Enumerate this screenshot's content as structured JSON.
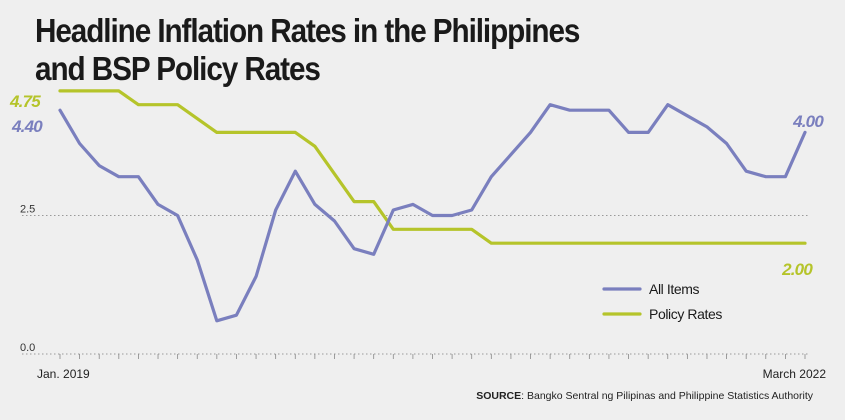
{
  "title_line1": "Headline Inflation Rates in the Philippines",
  "title_line2": "and BSP Policy Rates",
  "source_label": "SOURCE",
  "source_text": ": Bangko Sentral ng Pilipinas and Philippine Statistics Authority",
  "chart_data": {
    "type": "line",
    "ylim": [
      0,
      5
    ],
    "y_ticks": [
      {
        "value": 0,
        "label": "0.0"
      },
      {
        "value": 2.5,
        "label": "2.5"
      }
    ],
    "x_labels": {
      "first": "Jan. 2019",
      "last": "March 2022"
    },
    "legend_position": "bottom-right",
    "series": [
      {
        "name": "All Items",
        "color": "#7a7fbe",
        "values": [
          4.4,
          3.8,
          3.4,
          3.2,
          3.2,
          2.7,
          2.5,
          1.7,
          0.6,
          0.7,
          1.4,
          2.6,
          3.3,
          2.7,
          2.4,
          1.9,
          1.8,
          2.6,
          2.7,
          2.5,
          2.5,
          2.6,
          3.2,
          3.6,
          4.0,
          4.5,
          4.4,
          4.4,
          4.4,
          4.0,
          4.0,
          4.5,
          4.3,
          4.1,
          3.8,
          3.3,
          3.2,
          3.2,
          4.0
        ],
        "start_label": "4.40",
        "end_label": "4.00"
      },
      {
        "name": "Policy Rates",
        "color": "#b5c42a",
        "values": [
          4.75,
          4.75,
          4.75,
          4.75,
          4.5,
          4.5,
          4.5,
          4.25,
          4.0,
          4.0,
          4.0,
          4.0,
          4.0,
          3.75,
          3.25,
          2.75,
          2.75,
          2.25,
          2.25,
          2.25,
          2.25,
          2.25,
          2.0,
          2.0,
          2.0,
          2.0,
          2.0,
          2.0,
          2.0,
          2.0,
          2.0,
          2.0,
          2.0,
          2.0,
          2.0,
          2.0,
          2.0,
          2.0,
          2.0
        ],
        "start_label": "4.75",
        "end_label": "2.00"
      }
    ]
  }
}
